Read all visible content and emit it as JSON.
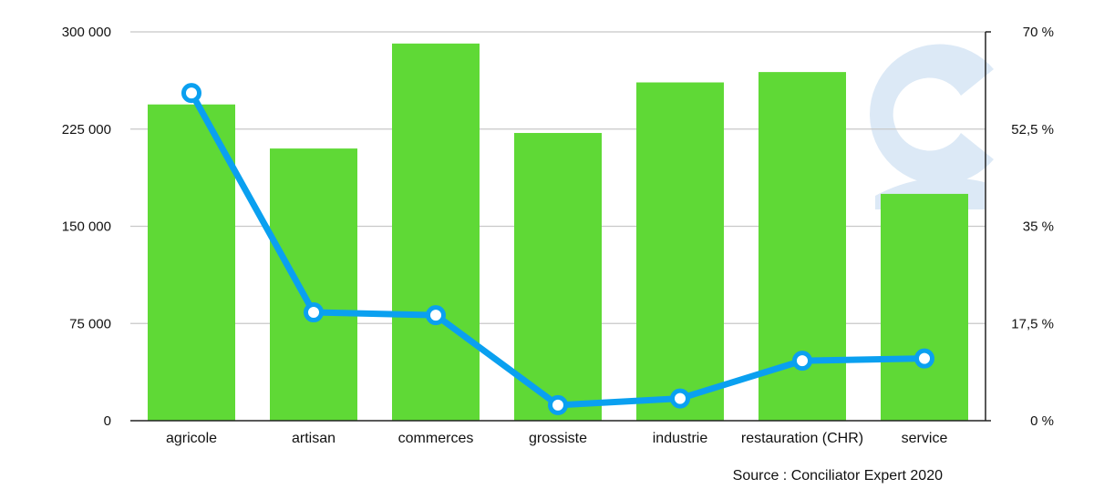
{
  "source_note": "Source : Conciliator Expert 2020",
  "colors": {
    "bars": "#5fd936",
    "line": "#0aa0f0",
    "marker_fill": "#ffffff",
    "grid": "#c8c8c8",
    "axis": "#222222",
    "watermark": "#dce9f6"
  },
  "watermark_icon": "conciliator-logo-icon",
  "chart_data": {
    "type": "bar",
    "title": "",
    "categories": [
      "agricole",
      "artisan",
      "commerces",
      "grossiste",
      "industrie",
      "restauration (CHR)",
      "service"
    ],
    "series": [
      {
        "type": "bar",
        "axis": "left",
        "values": [
          244000,
          210000,
          291000,
          222000,
          261000,
          269000,
          175000
        ]
      },
      {
        "type": "line",
        "axis": "right",
        "values": [
          59,
          19.5,
          19,
          2.8,
          4,
          10.8,
          11.2
        ]
      }
    ],
    "ylim_left": [
      0,
      300000
    ],
    "yticks_left": [
      "0",
      "75 000",
      "150 000",
      "225 000",
      "300 000"
    ],
    "ylim_right": [
      0,
      70
    ],
    "yticks_right": [
      "0 %",
      "17,5 %",
      "35 %",
      "52,5 %",
      "70 %"
    ],
    "grid": true,
    "legend": "none"
  }
}
